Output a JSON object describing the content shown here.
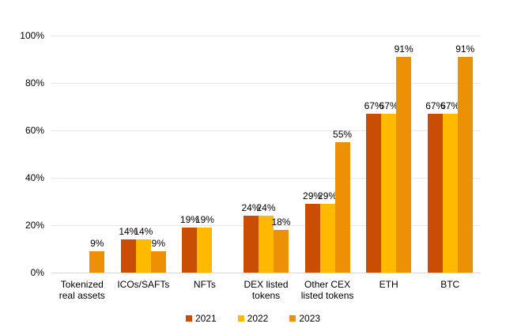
{
  "chart_data": {
    "type": "bar",
    "title": "",
    "categories": [
      "Tokenized real assets",
      "ICOs/SAFTs",
      "NFTs",
      "DEX listed tokens",
      "Other CEX listed tokens",
      "ETH",
      "BTC"
    ],
    "category_label_lines": [
      [
        "Tokenized",
        "real assets"
      ],
      [
        "ICOs/SAFTs"
      ],
      [
        "NFTs"
      ],
      [
        "DEX listed",
        "tokens"
      ],
      [
        "Other CEX",
        "listed tokens"
      ],
      [
        "ETH"
      ],
      [
        "BTC"
      ]
    ],
    "series": [
      {
        "name": "2021",
        "color": "#C94D03",
        "values": [
          null,
          14,
          19,
          24,
          29,
          67,
          67
        ]
      },
      {
        "name": "2022",
        "color": "#FFBA00",
        "values": [
          null,
          14,
          19,
          24,
          29,
          67,
          67
        ]
      },
      {
        "name": "2023",
        "color": "#EC9006",
        "values": [
          9,
          9,
          null,
          18,
          55,
          91,
          91
        ]
      }
    ],
    "data_labels": true,
    "data_label_suffix": "%",
    "xlabel": "",
    "ylabel": "",
    "ylim": [
      0,
      100
    ],
    "yticks": [
      0,
      20,
      40,
      60,
      80,
      100
    ],
    "ytick_labels": [
      "0%",
      "20%",
      "40%",
      "60%",
      "80%",
      "100%"
    ],
    "grid": true,
    "legend_position": "bottom",
    "legend": [
      "2021",
      "2022",
      "2023"
    ]
  },
  "colors": {
    "background": "#FFFFFF",
    "gridline": "#E7E7E7",
    "axis_line": "#D9D9D9",
    "text": "#000000"
  }
}
